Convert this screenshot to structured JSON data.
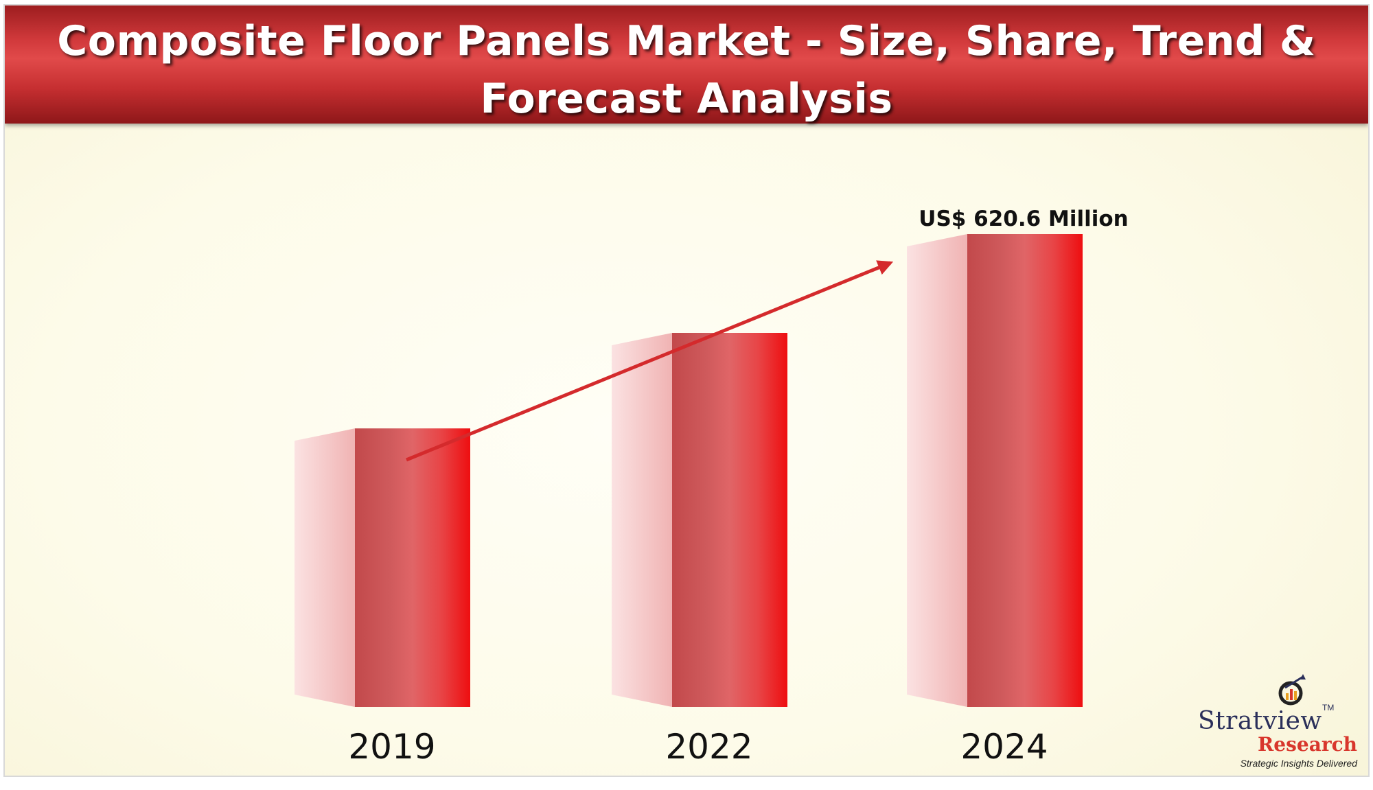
{
  "title": "Composite Floor Panels Market - Size, Share, Trend & Forecast Analysis",
  "chart_data": {
    "type": "bar",
    "categories": [
      "2019",
      "2022",
      "2024"
    ],
    "values": [
      null,
      null,
      620.6
    ],
    "value_label": "US$ 620.6 Million",
    "title": "",
    "xlabel": "",
    "ylabel": "",
    "bar_colors": [
      "#e31a1c",
      "#c9484a",
      "#f6c9c9"
    ],
    "trend_arrow": true,
    "grid": false
  },
  "logo": {
    "name": "Stratview",
    "trademark": "TM",
    "subname": "Research",
    "tagline": "Strategic Insights Delivered",
    "icon": "magnifier-chart-icon"
  },
  "colors": {
    "header": "#c62f31",
    "background": "#fdfbe9",
    "bar": "#e31a1c",
    "arrow": "#d42a2c"
  }
}
